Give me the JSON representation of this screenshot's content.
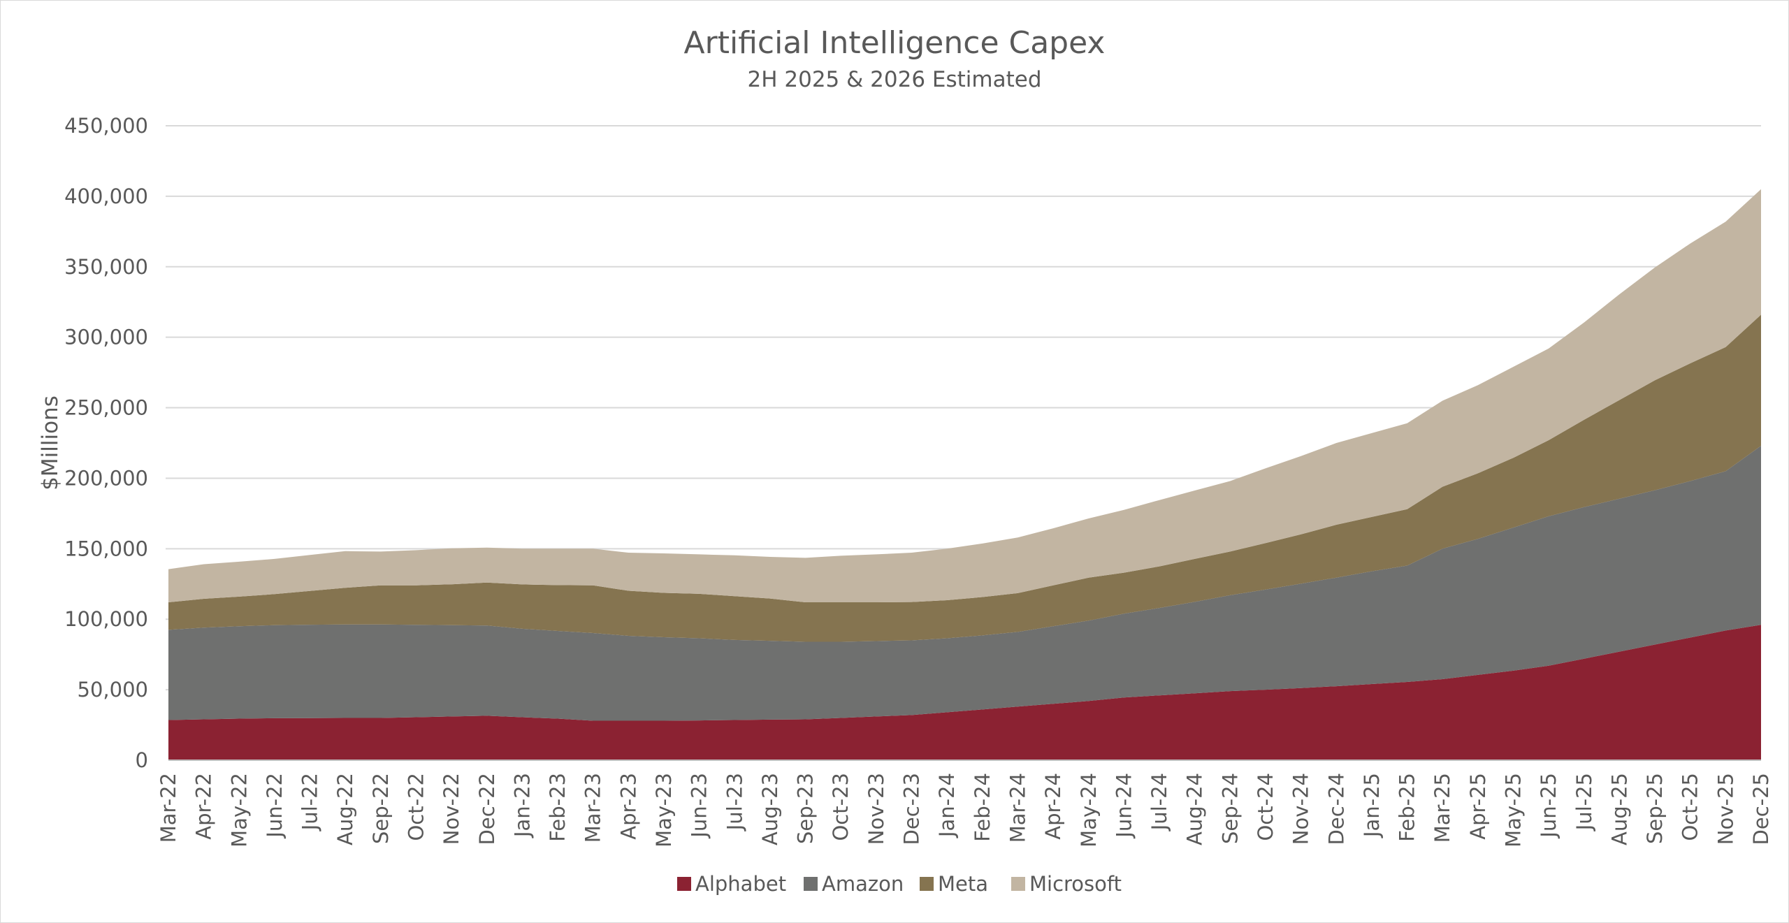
{
  "chart_data": {
    "type": "area",
    "stacked": true,
    "title": "Artificial Intelligence Capex",
    "subtitle": "2H 2025 & 2026 Estimated",
    "xlabel": "",
    "ylabel": "$Millions",
    "ylim": [
      0,
      450000
    ],
    "yticks": [
      0,
      50000,
      100000,
      150000,
      200000,
      250000,
      300000,
      350000,
      400000,
      450000
    ],
    "ytick_labels": [
      "0",
      "50,000",
      "100,000",
      "150,000",
      "200,000",
      "250,000",
      "300,000",
      "350,000",
      "400,000",
      "450,000"
    ],
    "grid": true,
    "legend_position": "bottom",
    "categories": [
      "Mar-22",
      "Apr-22",
      "May-22",
      "Jun-22",
      "Jul-22",
      "Aug-22",
      "Sep-22",
      "Oct-22",
      "Nov-22",
      "Dec-22",
      "Jan-23",
      "Feb-23",
      "Mar-23",
      "Apr-23",
      "May-23",
      "Jun-23",
      "Jul-23",
      "Aug-23",
      "Sep-23",
      "Oct-23",
      "Nov-23",
      "Dec-23",
      "Jan-24",
      "Feb-24",
      "Mar-24",
      "Apr-24",
      "May-24",
      "Jun-24",
      "Jul-24",
      "Aug-24",
      "Sep-24",
      "Oct-24",
      "Nov-24",
      "Dec-24",
      "Jan-25",
      "Feb-25",
      "Mar-25",
      "Apr-25",
      "May-25",
      "Jun-25",
      "Jul-25",
      "Aug-25",
      "Sep-25",
      "Oct-25",
      "Nov-25",
      "Dec-25"
    ],
    "series": [
      {
        "name": "Alphabet",
        "color": "#8b2232",
        "values": [
          28500,
          29000,
          29500,
          29800,
          29900,
          30000,
          30000,
          30500,
          31000,
          31500,
          30500,
          29500,
          28000,
          28000,
          28000,
          28200,
          28500,
          28800,
          29000,
          30000,
          31000,
          32000,
          34000,
          36000,
          38000,
          40000,
          42000,
          44500,
          46000,
          47500,
          49000,
          50000,
          51200,
          52500,
          54000,
          55500,
          57500,
          60500,
          63500,
          67000,
          72000,
          77000,
          82000,
          87000,
          92000,
          96000
        ]
      },
      {
        "name": "Amazon",
        "color": "#6f706f",
        "values": [
          64000,
          65000,
          65500,
          66000,
          66200,
          66300,
          66300,
          65500,
          64800,
          64000,
          62700,
          62200,
          62200,
          60200,
          59200,
          58300,
          56800,
          55900,
          55000,
          54000,
          53500,
          53000,
          52500,
          52500,
          53000,
          55000,
          57000,
          59500,
          62000,
          64800,
          68000,
          71000,
          74000,
          77000,
          80000,
          82500,
          92500,
          96500,
          101500,
          106000,
          107500,
          108500,
          109500,
          111000,
          113000,
          127000
        ]
      },
      {
        "name": "Meta",
        "color": "#857450",
        "values": [
          19500,
          20500,
          21000,
          22000,
          24000,
          26000,
          27700,
          28000,
          29000,
          30500,
          31500,
          32500,
          33800,
          32000,
          31500,
          31500,
          31000,
          30000,
          28000,
          28000,
          27500,
          27200,
          27000,
          27200,
          27500,
          29000,
          30500,
          29000,
          29500,
          30500,
          31000,
          33000,
          35000,
          37500,
          38500,
          40000,
          44000,
          46500,
          49500,
          54000,
          62000,
          70000,
          78000,
          83500,
          88000,
          93000
        ]
      },
      {
        "name": "Microsoft",
        "color": "#c2b5a2",
        "values": [
          23500,
          24500,
          24800,
          25000,
          25500,
          26000,
          24000,
          25000,
          25500,
          24800,
          25300,
          25800,
          26000,
          27000,
          28000,
          28000,
          29000,
          29500,
          31500,
          33000,
          34000,
          35000,
          36500,
          38000,
          39500,
          40500,
          42000,
          44500,
          47000,
          48500,
          50000,
          53000,
          55500,
          58000,
          59500,
          61000,
          61000,
          62500,
          64500,
          65000,
          69000,
          75000,
          80000,
          85000,
          89000,
          89000
        ]
      }
    ]
  }
}
